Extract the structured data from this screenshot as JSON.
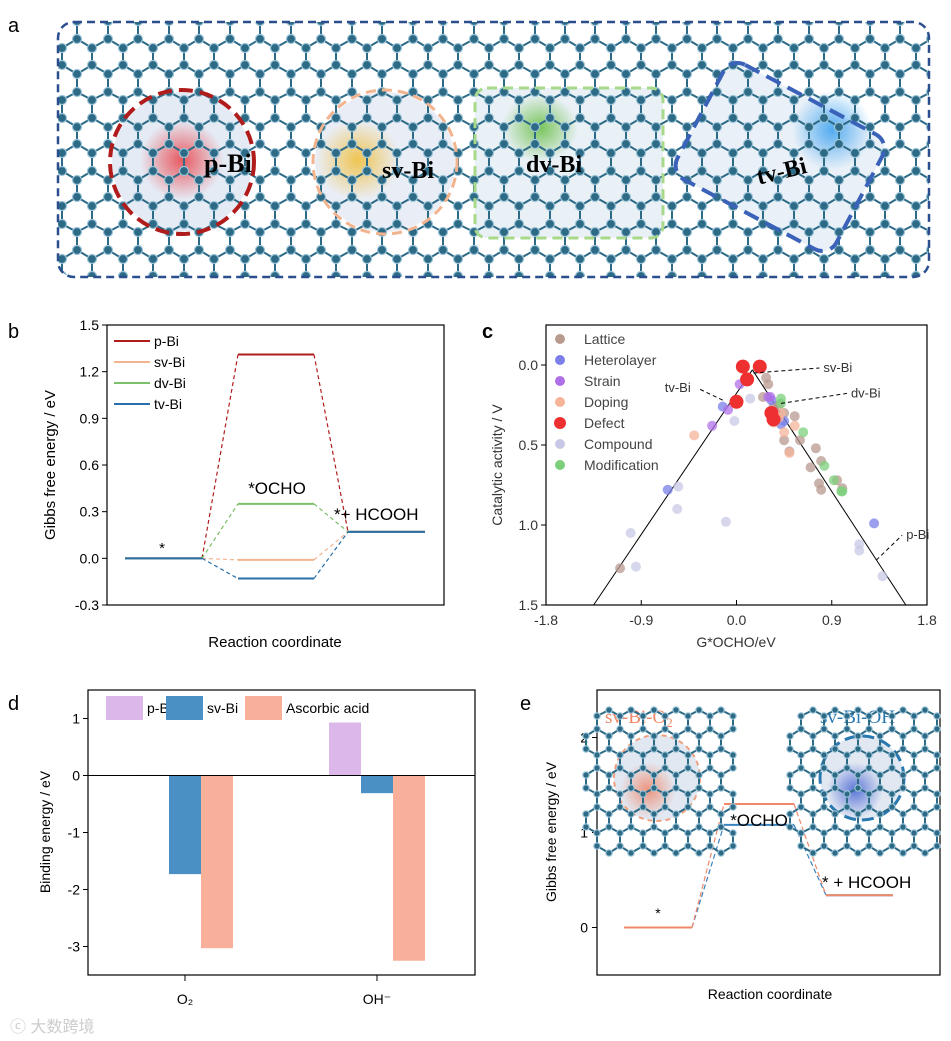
{
  "panel_labels": {
    "a": "a",
    "b": "b",
    "c": "c",
    "d": "d",
    "e": "e"
  },
  "panel_a": {
    "sites": [
      {
        "label": "p-Bi",
        "color": "#e8484f",
        "border": "#b01c1c"
      },
      {
        "label": "sv-Bi",
        "color": "#f0c040",
        "border": "#f2b48e"
      },
      {
        "label": "dv-Bi",
        "color": "#6cc04a",
        "border": "#a8d88a"
      },
      {
        "label": "tv-Bi",
        "color": "#4aa8f0",
        "border": "#3a62b8"
      }
    ],
    "lattice_color": "#2d6a86",
    "frame_color": "#2b4f8e"
  },
  "watermark": "大数跨境",
  "chart_data": [
    {
      "id": "b",
      "type": "line",
      "title": "",
      "xlabel": "Reaction coordinate",
      "ylabel": "Gibbs free energy / eV",
      "ylim": [
        -0.3,
        1.5
      ],
      "yticks": [
        -0.3,
        0.0,
        0.3,
        0.6,
        0.9,
        1.2,
        1.5
      ],
      "ytick_labels": [
        "-0.3",
        "0.0",
        "0.3",
        "0.6",
        "0.9",
        "1.2",
        "1.5"
      ],
      "steps": [
        "*",
        "*OCHO",
        "*+ HCOOH"
      ],
      "legend_position": "top-left",
      "series": [
        {
          "name": "p-Bi",
          "color": "#b01c1c",
          "values": [
            0,
            1.31,
            0.17
          ]
        },
        {
          "name": "sv-Bi",
          "color": "#f2b48e",
          "values": [
            0,
            -0.01,
            0.17
          ]
        },
        {
          "name": "dv-Bi",
          "color": "#7cc06a",
          "values": [
            0,
            0.35,
            0.17
          ]
        },
        {
          "name": "tv-Bi",
          "color": "#2a6fa8",
          "values": [
            0,
            -0.13,
            0.17
          ]
        }
      ]
    },
    {
      "id": "c",
      "type": "scatter",
      "xlabel": "G*OCHO/eV",
      "ylabel": "Catalytic activity / V",
      "xlim": [
        -1.8,
        1.8
      ],
      "ylim": [
        1.5,
        -0.25
      ],
      "xticks": [
        -1.8,
        -0.9,
        0.0,
        0.9,
        1.8
      ],
      "xtick_labels": [
        "-1.8",
        "-0.9",
        "0.0",
        "0.9",
        "1.8"
      ],
      "yticks": [
        0.0,
        0.5,
        1.0,
        1.5
      ],
      "ytick_labels": [
        "0.0",
        "0.5",
        "1.0",
        "1.5"
      ],
      "volcano_lines": [
        [
          [
            -1.35,
            1.5
          ],
          [
            0.15,
            0.03
          ]
        ],
        [
          [
            0.15,
            0.03
          ],
          [
            1.6,
            1.5
          ]
        ]
      ],
      "legend_position": "top-left",
      "series": [
        {
          "name": "Lattice",
          "color": "#b89a90",
          "points": [
            [
              -1.1,
              1.27
            ],
            [
              0.25,
              0.2
            ],
            [
              0.3,
              0.12
            ],
            [
              0.35,
              0.26
            ],
            [
              0.45,
              0.3
            ],
            [
              0.55,
              0.32
            ],
            [
              0.6,
              0.47
            ],
            [
              0.7,
              0.64
            ],
            [
              0.75,
              0.52
            ],
            [
              0.78,
              0.74
            ],
            [
              0.8,
              0.6
            ],
            [
              0.8,
              0.78
            ],
            [
              0.5,
              0.54
            ],
            [
              0.45,
              0.47
            ],
            [
              1.0,
              0.77
            ],
            [
              0.95,
              0.72
            ],
            [
              0.28,
              0.08
            ],
            [
              0.4,
              0.25
            ]
          ]
        },
        {
          "name": "Heterolayer",
          "color": "#7a80e8",
          "points": [
            [
              -0.13,
              0.26
            ],
            [
              -0.65,
              0.78
            ],
            [
              1.3,
              0.99
            ],
            [
              0.42,
              0.37
            ],
            [
              0.45,
              0.35
            ],
            [
              0.33,
              0.22
            ]
          ]
        },
        {
          "name": "Strain",
          "color": "#b070e8",
          "points": [
            [
              -0.23,
              0.38
            ],
            [
              0.03,
              0.12
            ],
            [
              0.32,
              0.2
            ],
            [
              0.3,
              0.2
            ],
            [
              -0.08,
              0.28
            ]
          ]
        },
        {
          "name": "Doping",
          "color": "#f6b49a",
          "points": [
            [
              -0.4,
              0.44
            ],
            [
              0.4,
              0.33
            ],
            [
              0.45,
              0.42
            ],
            [
              0.5,
              0.55
            ],
            [
              0.55,
              0.38
            ],
            [
              0.35,
              0.36
            ],
            [
              0.42,
              0.3
            ]
          ]
        },
        {
          "name": "Defect",
          "color": "#ee3030",
          "points": [
            [
              0.06,
              0.01
            ],
            [
              0.22,
              0.01
            ],
            [
              0.1,
              0.09
            ],
            [
              0.0,
              0.23
            ],
            [
              0.35,
              0.34
            ],
            [
              0.33,
              0.3
            ]
          ]
        },
        {
          "name": "Compound",
          "color": "#c8c8e6",
          "points": [
            [
              -1.0,
              1.05
            ],
            [
              -0.95,
              1.26
            ],
            [
              -0.55,
              0.76
            ],
            [
              -0.56,
              0.9
            ],
            [
              -0.1,
              0.98
            ],
            [
              -0.02,
              0.35
            ],
            [
              0.13,
              0.21
            ],
            [
              1.16,
              1.12
            ],
            [
              1.16,
              1.16
            ],
            [
              1.38,
              1.32
            ]
          ]
        },
        {
          "name": "Modification",
          "color": "#7cd07c",
          "points": [
            [
              0.42,
              0.21
            ],
            [
              0.42,
              0.24
            ],
            [
              0.63,
              0.42
            ],
            [
              0.83,
              0.63
            ],
            [
              0.92,
              0.72
            ],
            [
              0.99,
              0.79
            ],
            [
              1.0,
              0.79
            ]
          ]
        }
      ],
      "annotations": [
        {
          "text": "tv-Bi",
          "at": [
            -0.13,
            0.22
          ]
        },
        {
          "text": "sv-Bi",
          "at": [
            0.16,
            0.05
          ]
        },
        {
          "text": "dv-Bi",
          "at": [
            0.42,
            0.24
          ]
        },
        {
          "text": "p-Bi",
          "at": [
            1.32,
            1.22
          ]
        }
      ]
    },
    {
      "id": "d",
      "type": "bar",
      "xlabel": "",
      "ylabel": "Binding energy / eV",
      "categories": [
        "O₂",
        "OH⁻"
      ],
      "ylim": [
        -3.5,
        1.5
      ],
      "yticks": [
        -3,
        -2,
        -1,
        0,
        1
      ],
      "ytick_labels": [
        "-3",
        "-2",
        "-1",
        "0",
        "1"
      ],
      "legend_position": "top",
      "series": [
        {
          "name": "p-Bi",
          "color": "#dcb8ea",
          "values": [
            0.01,
            0.93
          ]
        },
        {
          "name": "sv-Bi",
          "color": "#4a90c4",
          "values": [
            -1.73,
            -0.31
          ]
        },
        {
          "name": "Ascorbic acid",
          "color": "#f8b09a",
          "values": [
            -3.03,
            -3.25
          ]
        }
      ]
    },
    {
      "id": "e",
      "type": "line",
      "xlabel": "Reaction coordinate",
      "ylabel": "Gibbs free energy / eV",
      "ylim": [
        -0.5,
        2.5
      ],
      "yticks": [
        0,
        1,
        2
      ],
      "ytick_labels": [
        "0",
        "1",
        "2"
      ],
      "steps": [
        "*",
        "*OCHO",
        "* + HCOOH"
      ],
      "series": [
        {
          "name": "sv-Bi-OH",
          "color": "#3a82c0",
          "values": [
            0,
            1.08,
            0.34
          ]
        },
        {
          "name": "sv-Bi-O2",
          "color": "#f08868",
          "values": [
            0,
            1.3,
            0.34
          ]
        }
      ],
      "inset_labels": {
        "o2": "sv-Bi-O",
        "o2_sub": "2",
        "oh": "sv-Bi-OH"
      }
    }
  ]
}
